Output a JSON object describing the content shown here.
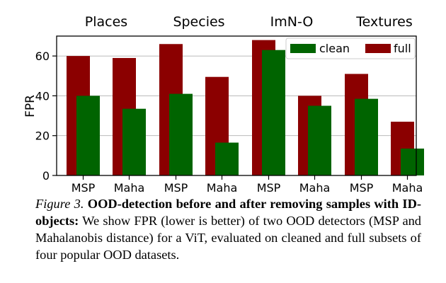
{
  "chart_data": {
    "type": "bar",
    "groups": [
      "Places",
      "Species",
      "ImN-O",
      "Textures"
    ],
    "categories": [
      "MSP",
      "Maha"
    ],
    "series": [
      {
        "name": "full",
        "color": "#8b0000",
        "values": [
          [
            60,
            59
          ],
          [
            66,
            49.5
          ],
          [
            68,
            40
          ],
          [
            51,
            27
          ]
        ]
      },
      {
        "name": "clean",
        "color": "#006400",
        "values": [
          [
            40,
            33.5
          ],
          [
            41,
            16.5
          ],
          [
            63,
            35
          ],
          [
            38.5,
            13.5
          ]
        ]
      }
    ],
    "ylabel": "FPR",
    "ylim": [
      0,
      70
    ],
    "yticks": [
      0,
      20,
      40,
      60
    ],
    "legend": {
      "entries": [
        "clean",
        "full"
      ],
      "placement": "top-right"
    }
  },
  "caption": {
    "figure_label": "Figure 3.",
    "title": "OOD-detection before and after removing samples with ID-objects:",
    "text": "We show FPR (lower is better) of two OOD detectors (MSP and Mahalanobis distance) for a ViT, evaluated on cleaned and full subsets of four popular OOD datasets."
  }
}
